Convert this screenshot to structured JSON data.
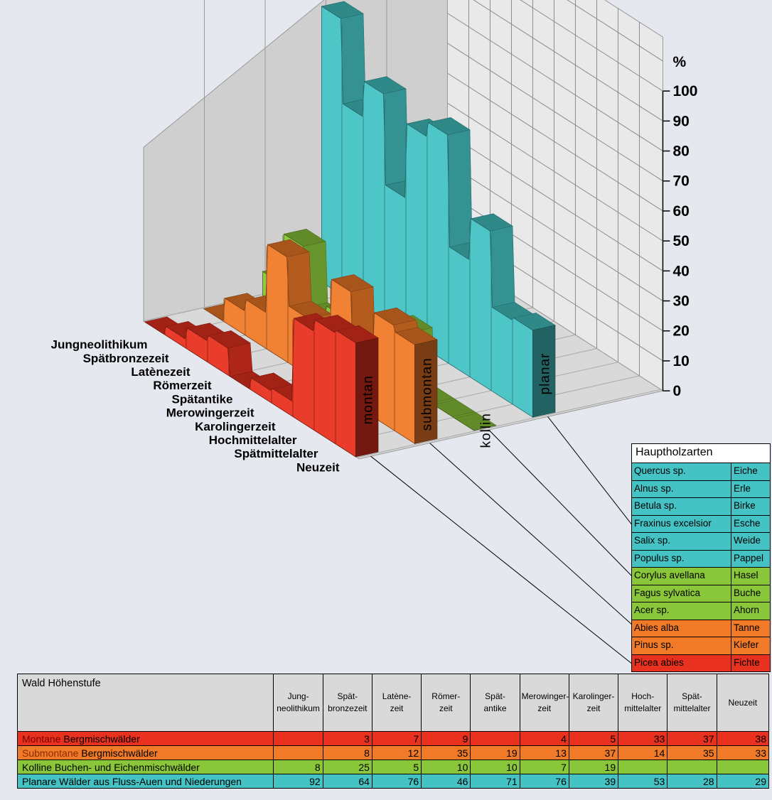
{
  "chart_data": {
    "type": "area",
    "ylabel": "%",
    "ylim": [
      0,
      100
    ],
    "ticks": [
      "0",
      "10",
      "20",
      "30",
      "40",
      "50",
      "60",
      "70",
      "80",
      "90",
      "100"
    ],
    "categories": [
      "Jungneolithikum",
      "Spätbronzezeit",
      "Latènezeit",
      "Römerzeit",
      "Spätantike",
      "Merowingerzeit",
      "Karolingerzeit",
      "Hochmittelalter",
      "Spätmittelalter",
      "Neuzeit"
    ],
    "series": [
      {
        "name": "montan",
        "color": "#e8321f",
        "values": [
          null,
          3,
          7,
          9,
          null,
          4,
          5,
          33,
          37,
          38
        ]
      },
      {
        "name": "submontan",
        "color": "#f07a28",
        "values": [
          null,
          8,
          12,
          35,
          19,
          13,
          37,
          14,
          35,
          33
        ]
      },
      {
        "name": "kollin",
        "color": "#8ac63a",
        "values": [
          8,
          25,
          5,
          10,
          10,
          7,
          19,
          null,
          null,
          null
        ]
      },
      {
        "name": "planar",
        "color": "#45c3c4",
        "values": [
          92,
          64,
          76,
          46,
          71,
          76,
          39,
          53,
          28,
          29
        ]
      }
    ]
  },
  "legend": {
    "title": "Hauptholzarten",
    "items": [
      {
        "latin": "Quercus sp.",
        "german": "Eiche",
        "color": "#45c3c4"
      },
      {
        "latin": "Alnus sp.",
        "german": "Erle",
        "color": "#45c3c4"
      },
      {
        "latin": "Betula sp.",
        "german": "Birke",
        "color": "#45c3c4"
      },
      {
        "latin": "Fraxinus excelsior",
        "german": "Esche",
        "color": "#45c3c4"
      },
      {
        "latin": "Salix sp.",
        "german": "Weide",
        "color": "#45c3c4"
      },
      {
        "latin": "Populus sp.",
        "german": "Pappel",
        "color": "#45c3c4"
      },
      {
        "latin": "Corylus avellana",
        "german": "Hasel",
        "color": "#8ac63a"
      },
      {
        "latin": "Fagus sylvatica",
        "german": "Buche",
        "color": "#8ac63a"
      },
      {
        "latin": "Acer sp.",
        "german": "Ahorn",
        "color": "#8ac63a"
      },
      {
        "latin": "Abies alba",
        "german": "Tanne",
        "color": "#f07a28"
      },
      {
        "latin": "Pinus sp.",
        "german": "Kiefer",
        "color": "#f07a28"
      },
      {
        "latin": "Picea abies",
        "german": "Fichte",
        "color": "#e8321f"
      }
    ]
  },
  "table": {
    "title": "Wald Höhenstufe",
    "headers": [
      "Jung-\nneolithikum",
      "Spät-\nbronzezeit",
      "Latène-\nzeit",
      "Römer-\nzeit",
      "Spät-\nantike",
      "Merowinger-\nzeit",
      "Karolinger-\nzeit",
      "Hoch-\nmittelalter",
      "Spät-\nmittelalter",
      "Neuzeit"
    ],
    "rows": [
      {
        "name_colored": "Montane",
        "name_rest": " Bergmischwälder",
        "name_color": "#7a0000",
        "bg": "#e8321f",
        "values": [
          "",
          "3",
          "7",
          "9",
          "",
          "4",
          "5",
          "33",
          "37",
          "38"
        ]
      },
      {
        "name_colored": "Submontane",
        "name_rest": " Bergmischwälder",
        "name_color": "#8a2c00",
        "bg": "#f07a28",
        "values": [
          "",
          "8",
          "12",
          "35",
          "19",
          "13",
          "37",
          "14",
          "35",
          "33"
        ]
      },
      {
        "name_colored": "",
        "name_rest": "Kolline Buchen- und Eichenmischwälder",
        "name_color": "#000000",
        "bg": "#8ac63a",
        "values": [
          "8",
          "25",
          "5",
          "10",
          "10",
          "7",
          "19",
          "",
          "",
          ""
        ]
      },
      {
        "name_colored": "",
        "name_rest": "Planare Wälder aus Fluss-Auen und Niederungen",
        "name_color": "#000000",
        "bg": "#45c3c4",
        "values": [
          "92",
          "64",
          "76",
          "46",
          "71",
          "76",
          "39",
          "53",
          "28",
          "29"
        ]
      }
    ]
  }
}
